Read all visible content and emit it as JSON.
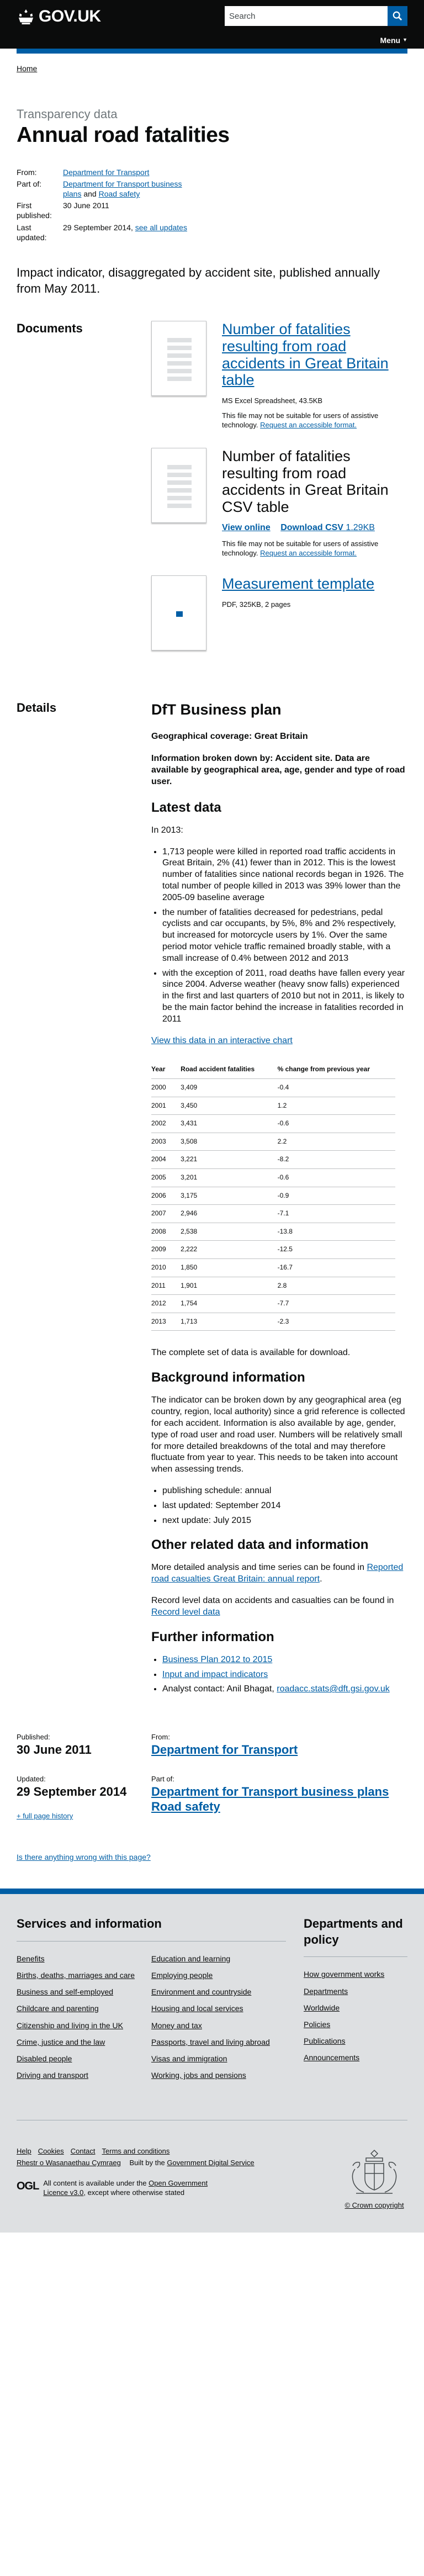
{
  "header": {
    "logo_text": "GOV.UK",
    "search_placeholder": "Search",
    "menu_label": "Menu"
  },
  "breadcrumb": {
    "home": "Home"
  },
  "page": {
    "kicker": "Transparency data",
    "title": "Annual road fatalities"
  },
  "meta": {
    "from_label": "From:",
    "from_value": "Department for Transport",
    "part_of_label": "Part of:",
    "part_of_1": "Department for Transport business plans",
    "part_of_and": " and ",
    "part_of_2": "Road safety",
    "first_published_label": "First published:",
    "first_published_value": "30 June 2011",
    "last_updated_label": "Last updated:",
    "last_updated_value": "29 September 2014, ",
    "see_all_updates": "see all updates"
  },
  "lead": "Impact indicator, disaggregated by accident site, published annually from May 2011.",
  "documents": {
    "heading": "Documents",
    "items": [
      {
        "title": "Number of fatalities resulting from road accidents in Great Britain table",
        "meta": "MS Excel Spreadsheet, 43.5KB",
        "note": "This file may not be suitable for users of assistive technology. ",
        "note_link": "Request an accessible format."
      },
      {
        "title": "Number of fatalities resulting from road accidents in Great Britain CSV table",
        "view_online": "View online",
        "download_csv": "Download CSV",
        "download_size": "1.29KB",
        "note": "This file may not be suitable for users of assistive technology. ",
        "note_link": "Request an accessible format."
      },
      {
        "title": "Measurement template",
        "meta": "PDF, 325KB, 2 pages"
      }
    ]
  },
  "details": {
    "heading": "Details",
    "plan_title": "DfT Business plan",
    "geo_coverage": "Geographical coverage: Great Britain",
    "breakdown": "Information broken down by: Accident site. Data are available by geographical area, age, gender and type of road user.",
    "latest_heading": "Latest data",
    "in_year": "In 2013:",
    "bullets": [
      "1,713 people were killed in reported road traffic accidents in Great Britain, 2% (41) fewer than in 2012. This is the lowest number of fatalities since national records began in 1926. The total number of people killed in 2013 was 39% lower than the 2005-09 baseline average",
      "the number of fatalities decreased for pedestrians, pedal cyclists and car occupants, by 5%, 8% and 2% respectively, but increased for motorcycle users by 1%. Over the same period motor vehicle traffic remained broadly stable, with a small increase of 0.4% between 2012 and 2013",
      "with the exception of 2011, road deaths have fallen every year since 2004. Adverse weather (heavy snow falls) experienced in the first and last quarters of 2010 but not in 2011, is likely to be the main factor behind the increase in fatalities recorded in 2011"
    ],
    "chart_link": "View this data in an interactive chart",
    "table": {
      "headers": [
        "Year",
        "Road accident fatalities",
        "% change from previous year"
      ],
      "rows": [
        [
          "2000",
          "3,409",
          "-0.4"
        ],
        [
          "2001",
          "3,450",
          "1.2"
        ],
        [
          "2002",
          "3,431",
          "-0.6"
        ],
        [
          "2003",
          "3,508",
          "2.2"
        ],
        [
          "2004",
          "3,221",
          "-8.2"
        ],
        [
          "2005",
          "3,201",
          "-0.6"
        ],
        [
          "2006",
          "3,175",
          "-0.9"
        ],
        [
          "2007",
          "2,946",
          "-7.1"
        ],
        [
          "2008",
          "2,538",
          "-13.8"
        ],
        [
          "2009",
          "2,222",
          "-12.5"
        ],
        [
          "2010",
          "1,850",
          "-16.7"
        ],
        [
          "2011",
          "1,901",
          "2.8"
        ],
        [
          "2012",
          "1,754",
          "-7.7"
        ],
        [
          "2013",
          "1,713",
          "-2.3"
        ]
      ]
    },
    "complete_set": "The complete set of data is available for download.",
    "background_heading": "Background information",
    "background_p": "The indicator can be broken down by any geographical area (eg country, region, local authority) since a grid reference is collected for each accident. Information is also available by age, gender, type of road user and road user. Numbers will be relatively small for more detailed breakdowns of the total and may therefore fluctuate from year to year. This needs to be taken into account when assessing trends.",
    "schedule": [
      "publishing schedule: annual",
      "last updated: September 2014",
      "next update: July 2015"
    ],
    "other_heading": "Other related data and information",
    "other_p1_pre": "More detailed analysis and time series can be found in ",
    "other_p1_link": "Reported road casualties Great Britain: annual report",
    "other_p1_post": ".",
    "other_p2_pre": "Record level data on accidents and casualties can be found in ",
    "other_p2_link": "Record level data",
    "further_heading": "Further information",
    "further_links": [
      "Business Plan 2012 to 2015",
      "Input and impact indicators"
    ],
    "analyst_label": "Analyst contact: Anil Bhagat, ",
    "analyst_email": "roadacc.stats@dft.gsi.gov.uk"
  },
  "publication": {
    "published_label": "Published:",
    "published_date": "30 June 2011",
    "from_label": "From:",
    "from_org": "Department for Transport",
    "updated_label": "Updated:",
    "updated_date": "29 September 2014",
    "part_label": "Part of:",
    "part_1": "Department for Transport business plans",
    "part_2": "Road safety",
    "full_history": "+ full page history"
  },
  "report_problem": "Is there anything wrong with this page?",
  "footer": {
    "services_heading": "Services and information",
    "col1": [
      "Benefits",
      "Births, deaths, marriages and care",
      "Business and self-employed",
      "Childcare and parenting",
      "Citizenship and living in the UK",
      "Crime, justice and the law",
      "Disabled people",
      "Driving and transport"
    ],
    "col2": [
      "Education and learning",
      "Employing people",
      "Environment and countryside",
      "Housing and local services",
      "Money and tax",
      "Passports, travel and living abroad",
      "Visas and immigration",
      "Working, jobs and pensions"
    ],
    "dept_heading": "Departments and policy",
    "dept_links": [
      "How government works",
      "Departments",
      "Worldwide",
      "Policies",
      "Publications",
      "Announcements"
    ],
    "bottom_links": [
      "Help",
      "Cookies",
      "Contact",
      "Terms and conditions"
    ],
    "welsh": "Rhestr o Wasanaethau Cymraeg",
    "built_by_pre": "Built by the ",
    "built_by_link": "Government Digital Service",
    "ogl_mark": "OGL",
    "ogl_pre": "All content is available under the ",
    "ogl_link": "Open Government Licence v3.0",
    "ogl_post": ", except where otherwise stated",
    "copyright": "© Crown copyright"
  }
}
